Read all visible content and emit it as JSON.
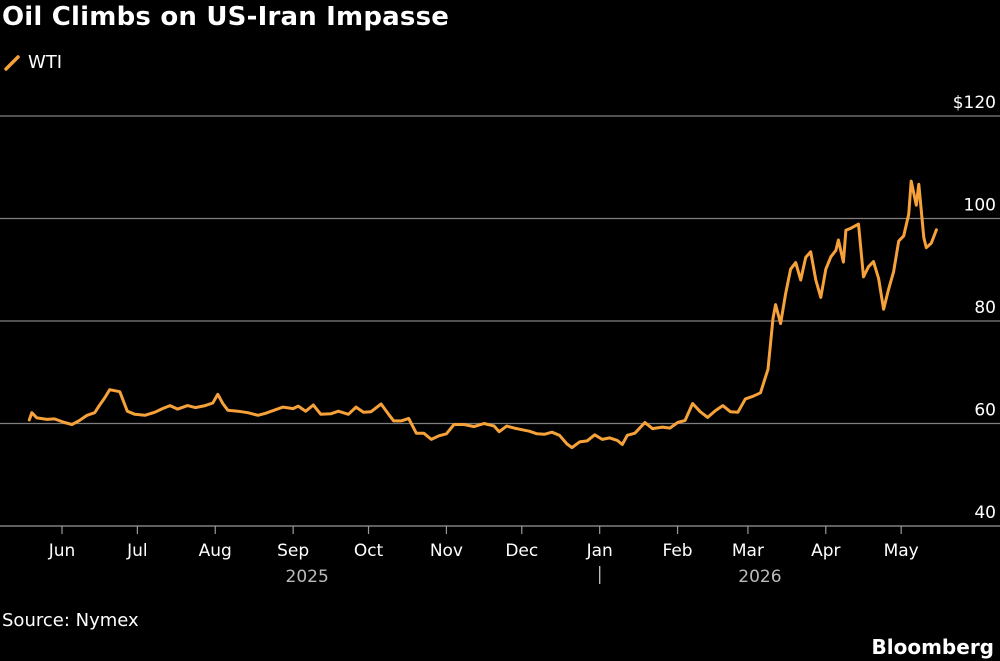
{
  "title": "Oil Climbs on US-Iran Impasse",
  "source": "Source: Nymex",
  "brand": "Bloomberg",
  "colors": {
    "background": "#000000",
    "line": "#f7a13a",
    "grid": "#7f7f7f",
    "text": "#ffffff",
    "year_text": "#bbbbbb"
  },
  "chart_data": {
    "type": "line",
    "grid": true,
    "legend_placement": "top-left",
    "ylim": [
      40,
      120
    ],
    "y_ticks": [
      {
        "value": 120,
        "label": "$120"
      },
      {
        "value": 100,
        "label": "100"
      },
      {
        "value": 80,
        "label": "80"
      },
      {
        "value": 60,
        "label": "60"
      },
      {
        "value": 40,
        "label": "40"
      }
    ],
    "x_tick_labels": [
      {
        "date": "2025-06-01",
        "label": "Jun"
      },
      {
        "date": "2025-07-01",
        "label": "Jul"
      },
      {
        "date": "2025-08-01",
        "label": "Aug"
      },
      {
        "date": "2025-09-01",
        "label": "Sep"
      },
      {
        "date": "2025-10-01",
        "label": "Oct"
      },
      {
        "date": "2025-11-01",
        "label": "Nov"
      },
      {
        "date": "2025-12-01",
        "label": "Dec"
      },
      {
        "date": "2026-01-01",
        "label": "Jan"
      },
      {
        "date": "2026-02-01",
        "label": "Feb"
      },
      {
        "date": "2026-03-01",
        "label": "Mar"
      },
      {
        "date": "2026-04-01",
        "label": "Apr"
      },
      {
        "date": "2026-05-01",
        "label": "May"
      }
    ],
    "year_labels": [
      "2025",
      "2026"
    ],
    "series": [
      {
        "name": "WTI",
        "points": [
          [
            "2025-05-19",
            60.7
          ],
          [
            "2025-05-20",
            62.1
          ],
          [
            "2025-05-22",
            61.1
          ],
          [
            "2025-05-26",
            60.8
          ],
          [
            "2025-05-29",
            60.9
          ],
          [
            "2025-06-02",
            60.2
          ],
          [
            "2025-06-05",
            59.8
          ],
          [
            "2025-06-08",
            60.6
          ],
          [
            "2025-06-11",
            61.6
          ],
          [
            "2025-06-14",
            62.1
          ],
          [
            "2025-06-16",
            63.6
          ],
          [
            "2025-06-18",
            65.0
          ],
          [
            "2025-06-20",
            66.6
          ],
          [
            "2025-06-24",
            66.2
          ],
          [
            "2025-06-27",
            62.4
          ],
          [
            "2025-06-30",
            61.8
          ],
          [
            "2025-07-04",
            61.6
          ],
          [
            "2025-07-08",
            62.2
          ],
          [
            "2025-07-11",
            62.9
          ],
          [
            "2025-07-14",
            63.5
          ],
          [
            "2025-07-17",
            62.8
          ],
          [
            "2025-07-21",
            63.5
          ],
          [
            "2025-07-24",
            63.1
          ],
          [
            "2025-07-28",
            63.5
          ],
          [
            "2025-07-31",
            64.0
          ],
          [
            "2025-08-02",
            65.7
          ],
          [
            "2025-08-04",
            63.9
          ],
          [
            "2025-08-06",
            62.6
          ],
          [
            "2025-08-10",
            62.4
          ],
          [
            "2025-08-14",
            62.1
          ],
          [
            "2025-08-18",
            61.6
          ],
          [
            "2025-08-21",
            62.0
          ],
          [
            "2025-08-25",
            62.7
          ],
          [
            "2025-08-28",
            63.2
          ],
          [
            "2025-09-01",
            62.9
          ],
          [
            "2025-09-03",
            63.4
          ],
          [
            "2025-09-06",
            62.4
          ],
          [
            "2025-09-09",
            63.6
          ],
          [
            "2025-09-12",
            61.8
          ],
          [
            "2025-09-16",
            61.9
          ],
          [
            "2025-09-19",
            62.4
          ],
          [
            "2025-09-23",
            61.8
          ],
          [
            "2025-09-26",
            63.2
          ],
          [
            "2025-09-29",
            62.2
          ],
          [
            "2025-10-02",
            62.3
          ],
          [
            "2025-10-06",
            63.8
          ],
          [
            "2025-10-09",
            61.8
          ],
          [
            "2025-10-11",
            60.5
          ],
          [
            "2025-10-14",
            60.5
          ],
          [
            "2025-10-17",
            61.0
          ],
          [
            "2025-10-20",
            58.1
          ],
          [
            "2025-10-23",
            58.1
          ],
          [
            "2025-10-26",
            56.9
          ],
          [
            "2025-10-29",
            57.6
          ],
          [
            "2025-11-01",
            58.0
          ],
          [
            "2025-11-04",
            59.8
          ],
          [
            "2025-11-08",
            59.8
          ],
          [
            "2025-11-12",
            59.4
          ],
          [
            "2025-11-16",
            60.0
          ],
          [
            "2025-11-20",
            59.5
          ],
          [
            "2025-11-22",
            58.4
          ],
          [
            "2025-11-25",
            59.5
          ],
          [
            "2025-11-28",
            59.1
          ],
          [
            "2025-12-01",
            58.8
          ],
          [
            "2025-12-04",
            58.5
          ],
          [
            "2025-12-07",
            58.0
          ],
          [
            "2025-12-10",
            57.9
          ],
          [
            "2025-12-13",
            58.3
          ],
          [
            "2025-12-16",
            57.7
          ],
          [
            "2025-12-19",
            56.0
          ],
          [
            "2025-12-21",
            55.3
          ],
          [
            "2025-12-24",
            56.4
          ],
          [
            "2025-12-27",
            56.6
          ],
          [
            "2025-12-30",
            57.8
          ],
          [
            "2026-01-02",
            56.9
          ],
          [
            "2026-01-05",
            57.2
          ],
          [
            "2026-01-08",
            56.7
          ],
          [
            "2026-01-10",
            55.9
          ],
          [
            "2026-01-12",
            57.7
          ],
          [
            "2026-01-15",
            58.1
          ],
          [
            "2026-01-19",
            60.2
          ],
          [
            "2026-01-22",
            59.0
          ],
          [
            "2026-01-26",
            59.3
          ],
          [
            "2026-01-29",
            59.1
          ],
          [
            "2026-02-01",
            60.2
          ],
          [
            "2026-02-04",
            60.6
          ],
          [
            "2026-02-07",
            63.9
          ],
          [
            "2026-02-10",
            62.3
          ],
          [
            "2026-02-13",
            61.2
          ],
          [
            "2026-02-16",
            62.5
          ],
          [
            "2026-02-19",
            63.5
          ],
          [
            "2026-02-22",
            62.3
          ],
          [
            "2026-02-25",
            62.2
          ],
          [
            "2026-02-28",
            64.8
          ],
          [
            "2026-03-03",
            65.3
          ],
          [
            "2026-03-06",
            66.0
          ],
          [
            "2026-03-09",
            70.6
          ],
          [
            "2026-03-11",
            80.5
          ],
          [
            "2026-03-12",
            83.2
          ],
          [
            "2026-03-14",
            79.5
          ],
          [
            "2026-03-16",
            85.3
          ],
          [
            "2026-03-18",
            90.1
          ],
          [
            "2026-03-20",
            91.4
          ],
          [
            "2026-03-22",
            88.0
          ],
          [
            "2026-03-24",
            92.4
          ],
          [
            "2026-03-26",
            93.5
          ],
          [
            "2026-03-28",
            88.0
          ],
          [
            "2026-03-30",
            84.6
          ],
          [
            "2026-04-01",
            90.1
          ],
          [
            "2026-04-03",
            92.5
          ],
          [
            "2026-04-05",
            93.8
          ],
          [
            "2026-04-06",
            95.8
          ],
          [
            "2026-04-08",
            91.5
          ],
          [
            "2026-04-09",
            97.7
          ],
          [
            "2026-04-11",
            98.1
          ],
          [
            "2026-04-14",
            98.9
          ],
          [
            "2026-04-16",
            88.6
          ],
          [
            "2026-04-18",
            90.6
          ],
          [
            "2026-04-20",
            91.6
          ],
          [
            "2026-04-22",
            88.3
          ],
          [
            "2026-04-24",
            82.3
          ],
          [
            "2026-04-26",
            86.2
          ],
          [
            "2026-04-28",
            89.6
          ],
          [
            "2026-04-30",
            95.6
          ],
          [
            "2026-05-02",
            96.6
          ],
          [
            "2026-05-04",
            100.8
          ],
          [
            "2026-05-05",
            107.3
          ],
          [
            "2026-05-07",
            102.6
          ],
          [
            "2026-05-08",
            106.7
          ],
          [
            "2026-05-10",
            96.3
          ],
          [
            "2026-05-11",
            94.3
          ],
          [
            "2026-05-13",
            95.2
          ],
          [
            "2026-05-15",
            97.8
          ]
        ]
      }
    ]
  }
}
